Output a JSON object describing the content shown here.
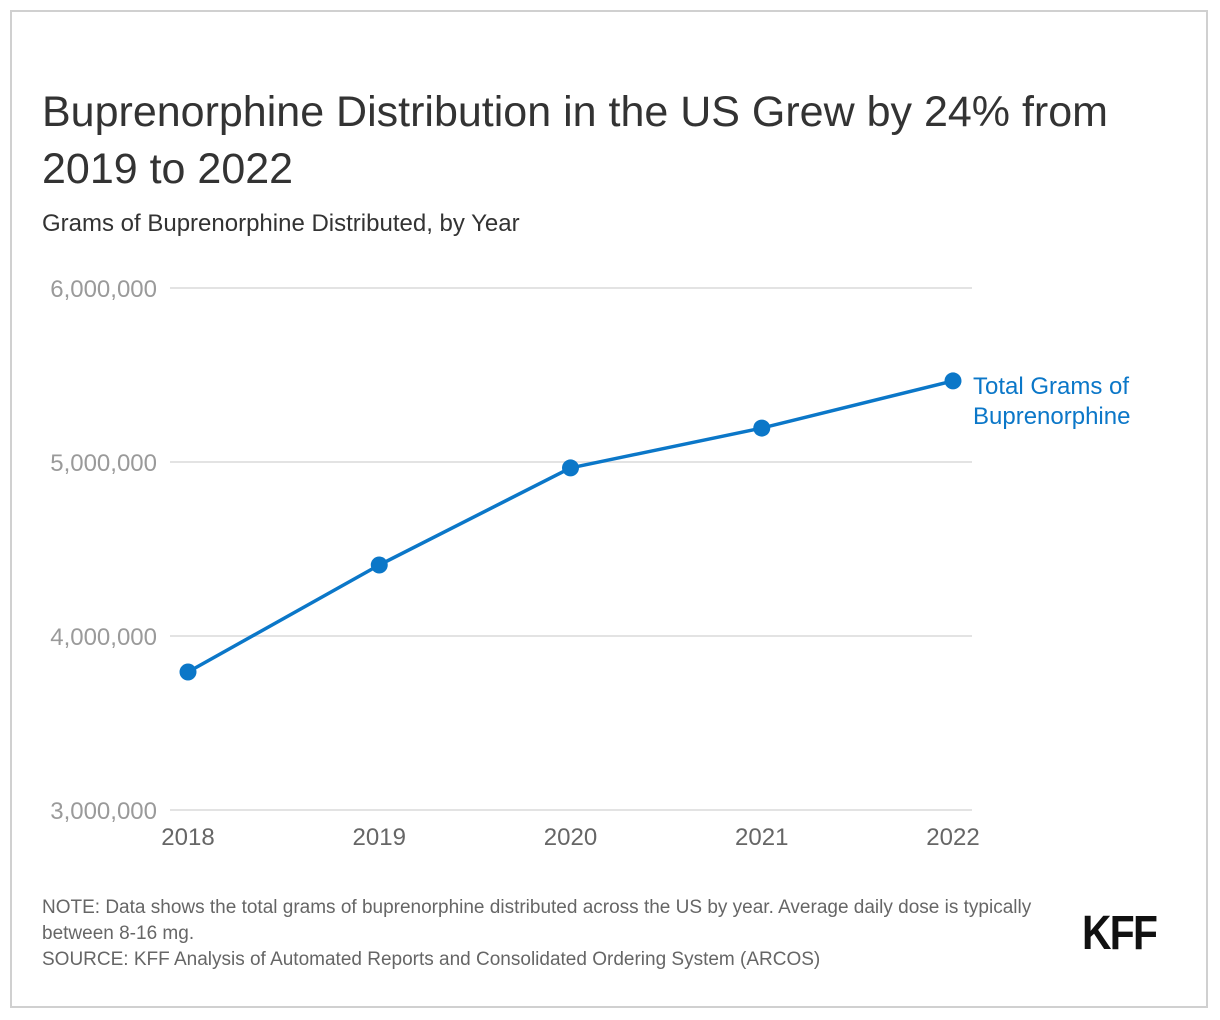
{
  "header": {
    "title": "Buprenorphine Distribution in the US Grew by 24% from 2019 to 2022",
    "subtitle": "Grams of Buprenorphine Distributed, by Year"
  },
  "footer": {
    "note": "NOTE: Data shows the total grams of buprenorphine distributed across the US by year. Average daily dose is typically between 8-16 mg.",
    "source": "SOURCE: KFF Analysis of Automated Reports and Consolidated Ordering System (ARCOS)",
    "logo": "KFF"
  },
  "colors": {
    "series": "#0b77c8",
    "grid": "#e3e3e3",
    "axis_text": "#9a9a9a",
    "x_text": "#666666"
  },
  "chart_data": {
    "type": "line",
    "title": "Buprenorphine Distribution in the US Grew by 24% from 2019 to 2022",
    "subtitle": "Grams of Buprenorphine Distributed, by Year",
    "xlabel": "",
    "ylabel": "",
    "categories": [
      "2018",
      "2019",
      "2020",
      "2021",
      "2022"
    ],
    "series": [
      {
        "name": "Total Grams of Buprenorphine",
        "label_lines": [
          "Total Grams of",
          "Buprenorphine"
        ],
        "values": [
          3793000,
          4408000,
          4966000,
          5195000,
          5466000
        ]
      }
    ],
    "ylim": [
      3000000,
      6000000
    ],
    "yticks": [
      3000000,
      4000000,
      5000000,
      6000000
    ],
    "ytick_labels": [
      "3,000,000",
      "4,000,000",
      "5,000,000",
      "6,000,000"
    ],
    "grid": true,
    "legend": "direct label at end of line (right)"
  }
}
